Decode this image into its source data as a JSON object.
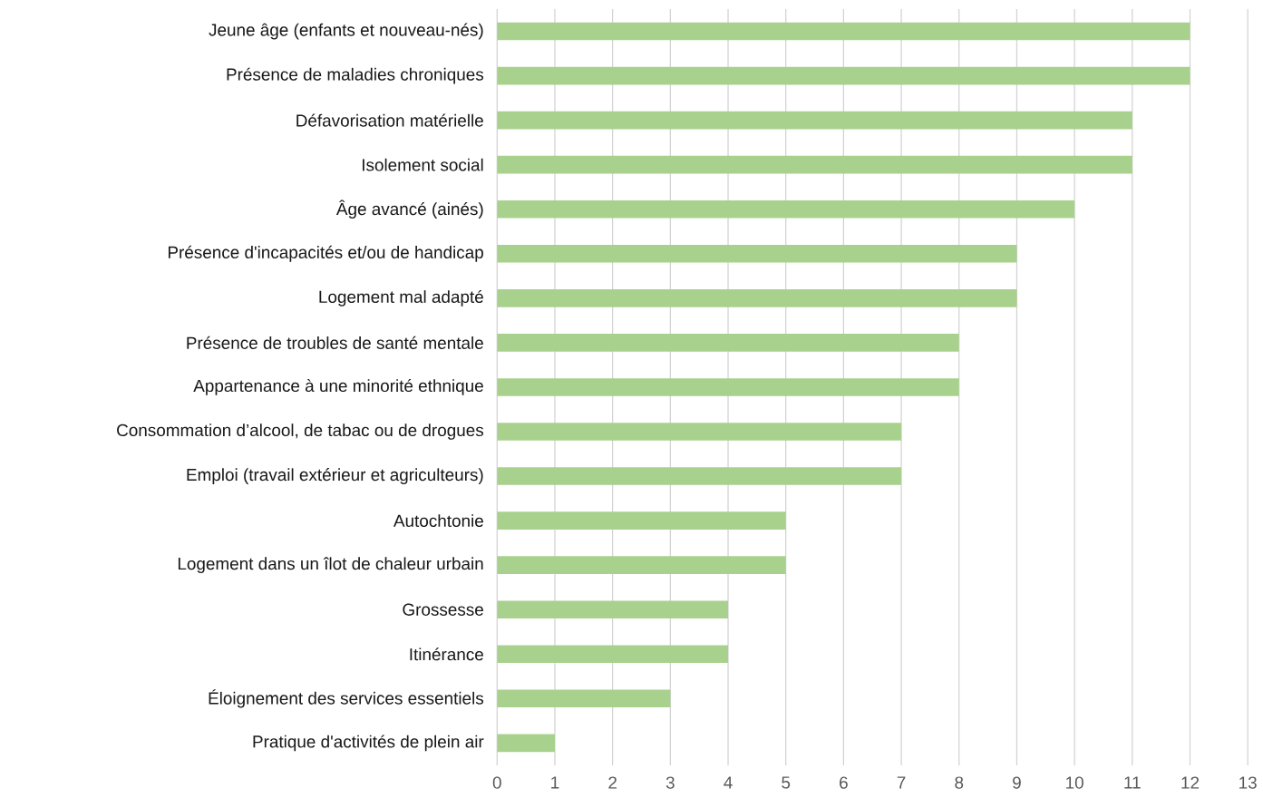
{
  "chart_data": {
    "type": "bar",
    "orientation": "horizontal",
    "color": "#a9d18e",
    "grid": "x",
    "categories": [
      "Jeune âge (enfants et nouveau-nés)",
      "Présence de maladies chroniques",
      "Défavorisation matérielle",
      "Isolement social",
      "Âge avancé (ainés)",
      "Présence d'incapacités et/ou de handicap",
      "Logement mal adapté",
      "Présence de troubles de santé mentale",
      "Appartenance à une minorité ethnique",
      "Consommation d’alcool, de tabac ou de drogues",
      "Emploi (travail extérieur et agriculteurs)",
      "Autochtonie",
      "Logement dans un îlot de chaleur urbain",
      "Grossesse",
      "Itinérance",
      "Éloignement des services essentiels",
      "Pratique d'activités de plein air"
    ],
    "values": [
      12,
      12,
      11,
      11,
      10,
      9,
      9,
      8,
      8,
      7,
      7,
      5,
      5,
      4,
      4,
      3,
      1
    ],
    "xlim": [
      0,
      13
    ],
    "xticks": [
      0,
      1,
      2,
      3,
      4,
      5,
      6,
      7,
      8,
      9,
      10,
      11,
      12,
      13
    ]
  }
}
